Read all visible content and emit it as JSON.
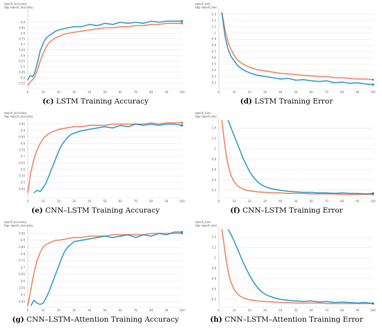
{
  "colors": {
    "series_a": "#1a8fc9",
    "series_b": "#f07650",
    "grid": "#e4e4e4",
    "baseline": "#cfcfcf"
  },
  "panels": [
    {
      "tag": "epoch_accuracy",
      "subtag": "tag: epoch_accuracy",
      "letter": "(c)",
      "caption": "LSTM Training Accuracy",
      "chart_data": {
        "type": "line",
        "ylim": [
          0.3,
          1.0
        ],
        "xlim": [
          0,
          100
        ],
        "x_ticks": [
          "0",
          "10",
          "20",
          "30",
          "40",
          "50",
          "60",
          "70",
          "80",
          "90",
          "100"
        ],
        "y_ticks": [
          "0.35",
          "0.4",
          "0.45",
          "0.5",
          "0.55",
          "0.6",
          "0.65",
          "0.7",
          "0.75",
          "0.8",
          "0.85",
          "0.9"
        ],
        "grid": true,
        "series": [
          {
            "color": "#1a8fc9",
            "x": [
              0,
              1,
              2,
              3,
              4,
              5,
              6,
              7,
              8,
              10,
              12,
              14,
              16,
              18,
              20,
              23,
              26,
              30,
              35,
              40,
              45,
              50,
              55,
              60,
              65,
              70,
              75,
              80,
              85,
              90,
              95,
              100
            ],
            "values": [
              0.38,
              0.41,
              0.42,
              0.41,
              0.43,
              0.47,
              0.52,
              0.58,
              0.64,
              0.71,
              0.76,
              0.78,
              0.8,
              0.82,
              0.83,
              0.84,
              0.85,
              0.86,
              0.86,
              0.88,
              0.87,
              0.89,
              0.88,
              0.9,
              0.89,
              0.9,
              0.89,
              0.91,
              0.9,
              0.91,
              0.91,
              0.91
            ]
          },
          {
            "color": "#f07650",
            "x": [
              0,
              1,
              2,
              3,
              4,
              5,
              6,
              7,
              8,
              10,
              12,
              14,
              16,
              18,
              20,
              23,
              26,
              30,
              35,
              40,
              45,
              50,
              55,
              60,
              65,
              70,
              75,
              80,
              85,
              90,
              95,
              100
            ],
            "values": [
              0.33,
              0.35,
              0.37,
              0.38,
              0.4,
              0.43,
              0.46,
              0.5,
              0.55,
              0.62,
              0.68,
              0.72,
              0.74,
              0.76,
              0.77,
              0.79,
              0.8,
              0.81,
              0.82,
              0.83,
              0.84,
              0.85,
              0.85,
              0.86,
              0.86,
              0.87,
              0.87,
              0.88,
              0.88,
              0.89,
              0.89,
              0.89
            ]
          }
        ]
      }
    },
    {
      "tag": "epoch_loss",
      "subtag": "tag: epoch_loss",
      "letter": "(d)",
      "caption": "LSTM Training Error",
      "chart_data": {
        "type": "line",
        "ylim": [
          0.1,
          1.35
        ],
        "xlim": [
          0,
          100
        ],
        "x_ticks": [
          "0",
          "10",
          "20",
          "30",
          "40",
          "50",
          "60",
          "70",
          "80",
          "90",
          "100"
        ],
        "y_ticks": [
          "0.2",
          "0.3",
          "0.4",
          "0.5",
          "0.6",
          "0.7",
          "0.8",
          "0.9",
          "1",
          "1.1",
          "1.2",
          "1.3"
        ],
        "grid": true,
        "series": [
          {
            "color": "#1a8fc9",
            "x": [
              2,
              4,
              6,
              8,
              10,
              12,
              15,
              18,
              21,
              25,
              30,
              35,
              40,
              45,
              50,
              55,
              60,
              65,
              70,
              75,
              80,
              85,
              90,
              95,
              100
            ],
            "values": [
              1.33,
              0.95,
              0.74,
              0.62,
              0.55,
              0.48,
              0.42,
              0.38,
              0.35,
              0.32,
              0.3,
              0.28,
              0.26,
              0.27,
              0.24,
              0.25,
              0.23,
              0.22,
              0.23,
              0.2,
              0.21,
              0.19,
              0.2,
              0.18,
              0.17
            ]
          },
          {
            "color": "#f07650",
            "x": [
              2,
              4,
              6,
              8,
              10,
              12,
              15,
              18,
              21,
              25,
              30,
              35,
              40,
              45,
              50,
              55,
              60,
              65,
              70,
              75,
              80,
              85,
              90,
              95,
              100
            ],
            "values": [
              1.33,
              1.05,
              0.85,
              0.73,
              0.64,
              0.57,
              0.51,
              0.47,
              0.44,
              0.41,
              0.39,
              0.37,
              0.35,
              0.34,
              0.33,
              0.32,
              0.31,
              0.3,
              0.3,
              0.28,
              0.28,
              0.27,
              0.26,
              0.26,
              0.25
            ]
          }
        ]
      }
    },
    {
      "tag": "epoch_accuracy",
      "subtag": "tag: epoch_accuracy",
      "letter": "(e)",
      "caption": "CNN–LSTM Training Accuracy",
      "chart_data": {
        "type": "line",
        "ylim": [
          0.38,
          0.98
        ],
        "xlim": [
          0,
          100
        ],
        "x_ticks": [
          "0",
          "10",
          "20",
          "30",
          "40",
          "50",
          "60",
          "70",
          "80",
          "90",
          "100"
        ],
        "y_ticks": [
          "0.45",
          "0.5",
          "0.55",
          "0.6",
          "0.65",
          "0.7",
          "0.75",
          "0.8",
          "0.85",
          "0.9",
          "0.95"
        ],
        "grid": true,
        "series": [
          {
            "color": "#1a8fc9",
            "x": [
              4,
              6,
              8,
              10,
              12,
              14,
              16,
              18,
              20,
              22,
              24,
              26,
              28,
              30,
              35,
              40,
              45,
              50,
              55,
              60,
              65,
              70,
              75,
              80,
              85,
              90,
              95,
              100
            ],
            "values": [
              0.42,
              0.44,
              0.43,
              0.46,
              0.5,
              0.56,
              0.62,
              0.68,
              0.74,
              0.79,
              0.82,
              0.85,
              0.87,
              0.88,
              0.9,
              0.91,
              0.92,
              0.93,
              0.92,
              0.94,
              0.93,
              0.95,
              0.94,
              0.95,
              0.94,
              0.95,
              0.95,
              0.94
            ]
          },
          {
            "color": "#f07650",
            "x": [
              0,
              2,
              4,
              6,
              8,
              10,
              12,
              14,
              16,
              18,
              20,
              25,
              30,
              35,
              40,
              45,
              50,
              55,
              60,
              65,
              70,
              75,
              80,
              85,
              90,
              95,
              100
            ],
            "values": [
              0.42,
              0.58,
              0.68,
              0.75,
              0.8,
              0.84,
              0.86,
              0.88,
              0.89,
              0.9,
              0.91,
              0.92,
              0.93,
              0.93,
              0.94,
              0.94,
              0.94,
              0.95,
              0.95,
              0.95,
              0.95,
              0.95,
              0.96,
              0.95,
              0.96,
              0.96,
              0.96
            ]
          }
        ]
      }
    },
    {
      "tag": "epoch_loss",
      "subtag": "tag: epoch_loss",
      "letter": "(f)",
      "caption": "CNN–LSTM Training Error",
      "chart_data": {
        "type": "line",
        "ylim": [
          0.05,
          1.55
        ],
        "xlim": [
          0,
          100
        ],
        "x_ticks": [
          "0",
          "10",
          "20",
          "30",
          "40",
          "50",
          "60",
          "70",
          "80",
          "90",
          "100"
        ],
        "y_ticks": [
          "0.2",
          "0.4",
          "0.6",
          "0.8",
          "1",
          "1.2",
          "1.4"
        ],
        "grid": true,
        "series": [
          {
            "color": "#1a8fc9",
            "x": [
              6,
              8,
              10,
              12,
              14,
              16,
              18,
              20,
              22,
              24,
              26,
              28,
              30,
              33,
              36,
              40,
              45,
              50,
              55,
              60,
              65,
              70,
              75,
              80,
              85,
              90,
              95,
              100
            ],
            "values": [
              1.55,
              1.4,
              1.25,
              1.1,
              0.95,
              0.8,
              0.68,
              0.56,
              0.47,
              0.4,
              0.34,
              0.3,
              0.27,
              0.24,
              0.22,
              0.2,
              0.18,
              0.17,
              0.16,
              0.16,
              0.15,
              0.15,
              0.14,
              0.15,
              0.14,
              0.14,
              0.13,
              0.14
            ]
          },
          {
            "color": "#f07650",
            "x": [
              2,
              3,
              4,
              5,
              6,
              7,
              8,
              10,
              12,
              14,
              16,
              18,
              20,
              25,
              30,
              35,
              40,
              45,
              50,
              55,
              60,
              65,
              70,
              75,
              80,
              85,
              90,
              95,
              100
            ],
            "values": [
              1.55,
              1.3,
              1.05,
              0.85,
              0.7,
              0.58,
              0.48,
              0.36,
              0.29,
              0.25,
              0.22,
              0.2,
              0.19,
              0.17,
              0.16,
              0.15,
              0.15,
              0.14,
              0.14,
              0.14,
              0.13,
              0.13,
              0.13,
              0.13,
              0.12,
              0.12,
              0.12,
              0.12,
              0.12
            ]
          }
        ]
      }
    },
    {
      "tag": "epoch_accuracy",
      "subtag": "tag: epoch_accuracy",
      "letter": "(g)",
      "caption": "CNN–LSTM–Attention Training Accuracy",
      "chart_data": {
        "type": "line",
        "ylim": [
          0.41,
          0.98
        ],
        "xlim": [
          0,
          100
        ],
        "x_ticks": [
          "0",
          "10",
          "20",
          "30",
          "40",
          "50",
          "60",
          "70",
          "80",
          "90",
          "100"
        ],
        "y_ticks": [
          "0.45",
          "0.5",
          "0.55",
          "0.6",
          "0.65",
          "0.7",
          "0.75",
          "0.8",
          "0.85",
          "0.9",
          "0.95"
        ],
        "grid": true,
        "series": [
          {
            "color": "#1a8fc9",
            "x": [
              2,
              4,
              6,
              8,
              10,
              12,
              14,
              16,
              18,
              20,
              22,
              24,
              26,
              28,
              30,
              35,
              40,
              45,
              50,
              55,
              60,
              65,
              70,
              75,
              80,
              85,
              90,
              95,
              100
            ],
            "values": [
              0.42,
              0.46,
              0.44,
              0.43,
              0.44,
              0.48,
              0.53,
              0.59,
              0.65,
              0.71,
              0.77,
              0.82,
              0.85,
              0.87,
              0.89,
              0.9,
              0.91,
              0.92,
              0.93,
              0.92,
              0.93,
              0.94,
              0.92,
              0.94,
              0.93,
              0.95,
              0.94,
              0.96,
              0.96
            ]
          },
          {
            "color": "#f07650",
            "x": [
              0,
              2,
              4,
              6,
              8,
              10,
              12,
              14,
              16,
              18,
              20,
              25,
              30,
              35,
              40,
              45,
              50,
              55,
              60,
              65,
              70,
              75,
              80,
              85,
              90,
              95,
              100
            ],
            "values": [
              0.42,
              0.54,
              0.66,
              0.75,
              0.81,
              0.85,
              0.87,
              0.88,
              0.89,
              0.9,
              0.9,
              0.91,
              0.92,
              0.92,
              0.93,
              0.93,
              0.93,
              0.94,
              0.94,
              0.94,
              0.94,
              0.94,
              0.95,
              0.95,
              0.95,
              0.95,
              0.95
            ]
          }
        ]
      }
    },
    {
      "tag": "epoch_loss",
      "subtag": "tag: epoch_loss",
      "letter": "(h)",
      "caption": "CNN–LSTM–Attention Training Error",
      "chart_data": {
        "type": "line",
        "ylim": [
          0.05,
          1.55
        ],
        "xlim": [
          0,
          100
        ],
        "x_ticks": [
          "0",
          "10",
          "20",
          "30",
          "40",
          "50",
          "60",
          "70",
          "80",
          "90",
          "100"
        ],
        "y_ticks": [
          "0.2",
          "0.4",
          "0.6",
          "0.8",
          "1",
          "1.2",
          "1.4"
        ],
        "grid": true,
        "series": [
          {
            "color": "#1a8fc9",
            "x": [
              6,
              8,
              10,
              12,
              14,
              16,
              18,
              20,
              22,
              24,
              26,
              28,
              30,
              33,
              36,
              40,
              45,
              50,
              55,
              60,
              65,
              70,
              75,
              80,
              85,
              90,
              95,
              100
            ],
            "values": [
              1.55,
              1.45,
              1.32,
              1.18,
              1.04,
              0.9,
              0.78,
              0.66,
              0.56,
              0.47,
              0.4,
              0.34,
              0.3,
              0.26,
              0.23,
              0.2,
              0.18,
              0.17,
              0.16,
              0.17,
              0.15,
              0.16,
              0.14,
              0.15,
              0.14,
              0.13,
              0.14,
              0.12
            ]
          },
          {
            "color": "#f07650",
            "x": [
              2,
              3,
              4,
              5,
              6,
              7,
              8,
              10,
              12,
              14,
              16,
              18,
              20,
              25,
              30,
              35,
              40,
              45,
              50,
              55,
              60,
              65,
              70,
              75,
              80,
              85,
              90,
              95,
              100
            ],
            "values": [
              1.55,
              1.35,
              1.12,
              0.92,
              0.76,
              0.62,
              0.52,
              0.39,
              0.31,
              0.26,
              0.23,
              0.21,
              0.19,
              0.17,
              0.16,
              0.15,
              0.14,
              0.14,
              0.13,
              0.13,
              0.13,
              0.13,
              0.12,
              0.12,
              0.12,
              0.12,
              0.12,
              0.12,
              0.12
            ]
          }
        ]
      }
    }
  ]
}
